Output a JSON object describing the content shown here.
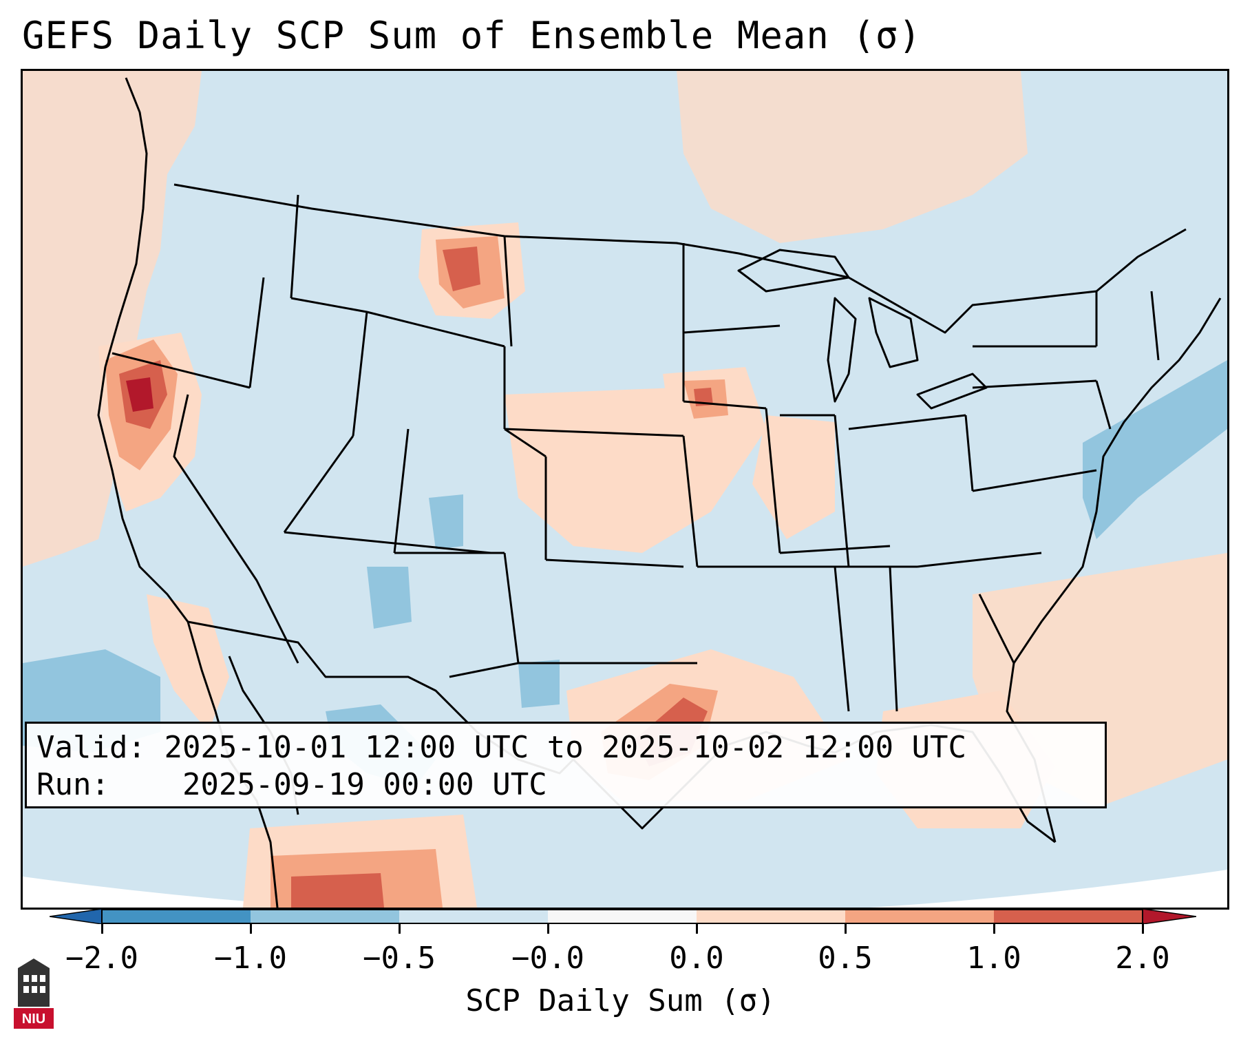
{
  "title": "GEFS Daily SCP Sum of Ensemble Mean (σ)",
  "info": {
    "valid_label": "Valid:",
    "valid_value": "2025-10-01 12:00 UTC to 2025-10-02 12:00 UTC",
    "run_label": "Run:",
    "run_value": "2025-09-19 00:00 UTC"
  },
  "colorbar": {
    "label": "SCP Daily Sum (σ)",
    "ticks": [
      "−2.0",
      "−1.0",
      "−0.5",
      "−0.0",
      "0.0",
      "0.5",
      "1.0",
      "2.0"
    ],
    "bins": [
      {
        "range": "< -2.0",
        "color": "#2166ac"
      },
      {
        "range": "-2.0 to -1.0",
        "color": "#4393c3"
      },
      {
        "range": "-1.0 to -0.5",
        "color": "#92c5de"
      },
      {
        "range": "-0.5 to -0.0",
        "color": "#d1e5f0"
      },
      {
        "range": "-0.0 to 0.0",
        "color": "#f7f7f7"
      },
      {
        "range": "0.0 to 0.5",
        "color": "#fddbc7"
      },
      {
        "range": "0.5 to 1.0",
        "color": "#f4a582"
      },
      {
        "range": "1.0 to 2.0",
        "color": "#d6604d"
      },
      {
        "range": "> 2.0",
        "color": "#b2182b"
      }
    ]
  },
  "logo": {
    "text": "NIU",
    "color": "#c8102e"
  },
  "colors": {
    "background_sigma": "#d1e5f0"
  }
}
